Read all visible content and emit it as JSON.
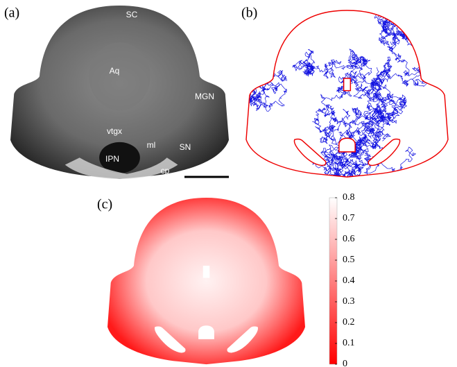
{
  "panels": {
    "a": {
      "label": "(a)",
      "regions": [
        "SC",
        "Aq",
        "MGN",
        "vtgx",
        "ml",
        "SN",
        "IPN",
        "cp"
      ]
    },
    "b": {
      "label": "(b)"
    },
    "c": {
      "label": "(c)",
      "colorbar": {
        "lim": [
          0,
          0.8
        ],
        "ticks": [
          0,
          0.1,
          0.2,
          0.3,
          0.4,
          0.5,
          0.6,
          0.7,
          0.8
        ]
      }
    }
  }
}
